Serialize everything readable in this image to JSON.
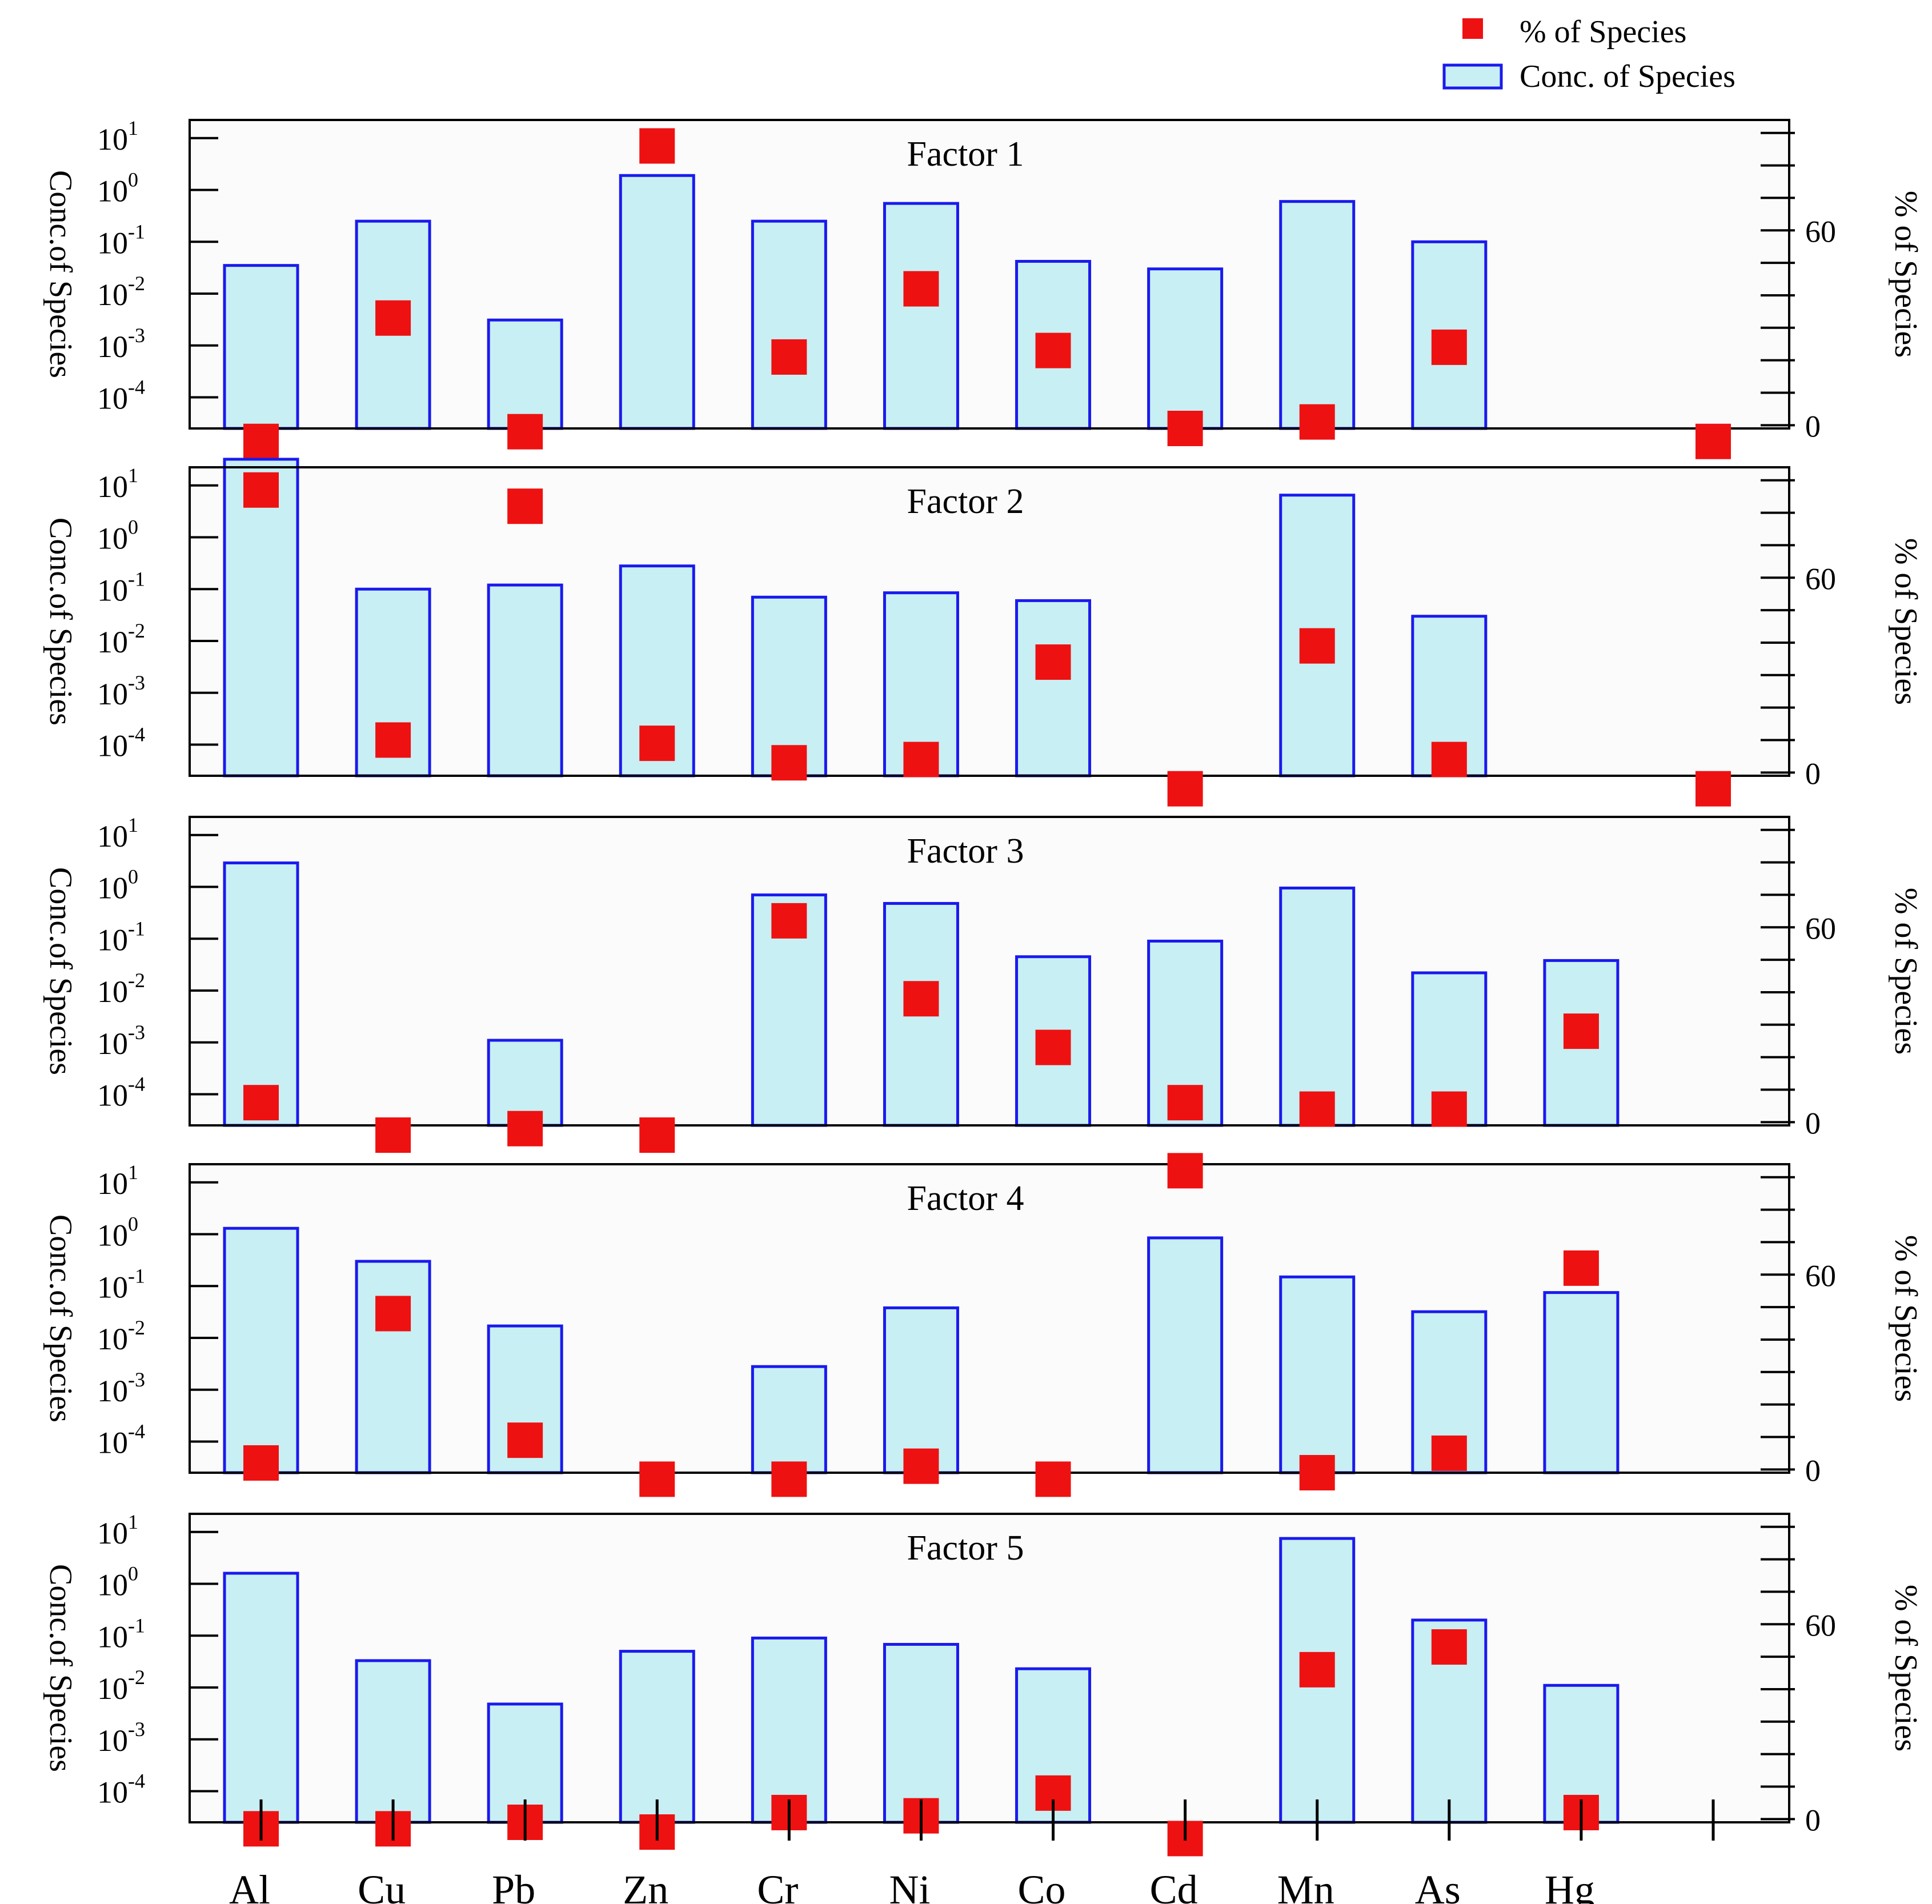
{
  "chart_data": {
    "type": "bar",
    "categories": [
      "Al",
      "Cu",
      "Pb",
      "Zn",
      "Cr",
      "Ni",
      "Co",
      "Cd",
      "Mn",
      "As",
      "Hg",
      ""
    ],
    "legend": {
      "position": "top-right",
      "entries": [
        {
          "key": "pct",
          "label": "% of Species",
          "color": "#ee1111"
        },
        {
          "key": "conc",
          "label": "Conc. of Species",
          "color": "#c8eff4",
          "edge": "#1a1aee"
        }
      ]
    },
    "y_left": {
      "label": "Conc.of Species",
      "scale": "log",
      "ylim_exp": [
        -4.6,
        1.35
      ],
      "ticks": [
        {
          "base": "10",
          "exp": "1",
          "value_exp": 1
        },
        {
          "base": "10",
          "exp": "0",
          "value_exp": 0
        },
        {
          "base": "10",
          "exp": "-1",
          "value_exp": -1
        },
        {
          "base": "10",
          "exp": "-2",
          "value_exp": -2
        },
        {
          "base": "10",
          "exp": "-3",
          "value_exp": -3
        },
        {
          "base": "10",
          "exp": "-4",
          "value_exp": -4
        }
      ]
    },
    "y_right": {
      "label": "% of Species",
      "ylim": [
        -1,
        94
      ],
      "labeled_ticks": [
        {
          "label": "60",
          "value": 60
        },
        {
          "label": "0",
          "value": 0
        }
      ],
      "minor_step": 10
    },
    "panels": [
      {
        "title": "Factor  1",
        "conc": [
          0.035,
          0.25,
          0.0031,
          1.9,
          0.25,
          0.55,
          0.042,
          0.03,
          0.6,
          0.1,
          null,
          null
        ],
        "pct": [
          -5,
          33,
          -2,
          86,
          21,
          42,
          23,
          -1,
          1,
          24,
          null,
          -5
        ]
      },
      {
        "title": "Factor  2",
        "conc": [
          32,
          0.1,
          0.12,
          0.28,
          0.07,
          0.085,
          0.06,
          null,
          6.5,
          0.03,
          null,
          null
        ],
        "pct": [
          87,
          10,
          82,
          9,
          3,
          4,
          34,
          -5,
          39,
          4,
          null,
          -5
        ]
      },
      {
        "title": "Factor  3",
        "conc": [
          2.9,
          null,
          0.0011,
          null,
          0.7,
          0.48,
          0.045,
          0.09,
          0.95,
          0.022,
          0.038,
          null
        ],
        "pct": [
          6,
          -4,
          -2,
          -4,
          62,
          38,
          23,
          6,
          4,
          4,
          28,
          null
        ]
      },
      {
        "title": "Factor  4",
        "conc": [
          1.3,
          0.3,
          0.017,
          null,
          0.0028,
          0.038,
          null,
          0.85,
          0.15,
          0.032,
          0.075,
          null
        ],
        "pct": [
          2,
          48,
          9,
          -3,
          -3,
          1,
          -3,
          92,
          -1,
          5,
          62,
          null
        ]
      },
      {
        "title": "Factor  5",
        "conc": [
          1.6,
          0.033,
          0.0048,
          0.05,
          0.09,
          0.068,
          0.023,
          null,
          7.5,
          0.2,
          0.011,
          null
        ],
        "pct": [
          -3,
          -3,
          -1,
          -4,
          2,
          1,
          8,
          -6,
          46,
          53,
          2,
          null
        ]
      }
    ]
  }
}
